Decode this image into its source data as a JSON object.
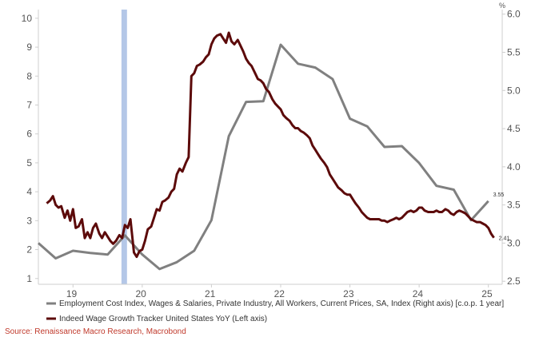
{
  "chart_data": {
    "type": "line",
    "right_axis_unit": "%",
    "left_axis": {
      "ylim": [
        0.8,
        10.3
      ],
      "ticks": [
        "1",
        "2",
        "3",
        "4",
        "5",
        "6",
        "7",
        "8",
        "9",
        "10"
      ]
    },
    "right_axis": {
      "ylim": [
        2.46,
        6.06
      ],
      "ticks": [
        "2.5",
        "3.0",
        "3.5",
        "4.0",
        "4.5",
        "5.0",
        "5.5",
        "6.0"
      ]
    },
    "x_axis": {
      "xlim": [
        2018.5,
        2025.2
      ],
      "ticks": [
        "19",
        "20",
        "21",
        "22",
        "23",
        "24",
        "25"
      ]
    },
    "recession_band": {
      "x_start": 2019.7,
      "x_end": 2019.78,
      "color": "#b4c7e7"
    },
    "series": [
      {
        "name": "Employment Cost Index, Wages & Salaries, Private Industry, All Workers, Current Prices, SA, Index (Right axis) [c.o.p. 1 year]",
        "axis": "right",
        "color": "#808080",
        "end_label": "3.55",
        "points": [
          [
            2018.5,
            3.0
          ],
          [
            2018.75,
            2.8
          ],
          [
            2019.0,
            2.9
          ],
          [
            2019.25,
            2.87
          ],
          [
            2019.5,
            2.85
          ],
          [
            2019.75,
            3.1
          ],
          [
            2020.0,
            2.85
          ],
          [
            2020.25,
            2.66
          ],
          [
            2020.5,
            2.75
          ],
          [
            2020.75,
            2.9
          ],
          [
            2021.0,
            3.3
          ],
          [
            2021.25,
            4.4
          ],
          [
            2021.5,
            4.85
          ],
          [
            2021.75,
            4.86
          ],
          [
            2022.0,
            5.6
          ],
          [
            2022.25,
            5.35
          ],
          [
            2022.5,
            5.3
          ],
          [
            2022.75,
            5.15
          ],
          [
            2023.0,
            4.63
          ],
          [
            2023.25,
            4.53
          ],
          [
            2023.5,
            4.26
          ],
          [
            2023.75,
            4.27
          ],
          [
            2024.0,
            4.05
          ],
          [
            2024.25,
            3.75
          ],
          [
            2024.5,
            3.7
          ],
          [
            2024.75,
            3.3
          ],
          [
            2025.0,
            3.55
          ]
        ]
      },
      {
        "name": "Indeed Wage Growth Tracker United States YoY (Left axis)",
        "axis": "left",
        "color": "#5c0a0a",
        "end_label": "2.41",
        "points": [
          [
            2018.62,
            3.6
          ],
          [
            2018.67,
            3.7
          ],
          [
            2018.71,
            3.85
          ],
          [
            2018.75,
            3.55
          ],
          [
            2018.79,
            3.45
          ],
          [
            2018.83,
            3.5
          ],
          [
            2018.88,
            3.1
          ],
          [
            2018.92,
            3.35
          ],
          [
            2018.96,
            3.0
          ],
          [
            2019.0,
            3.4
          ],
          [
            2019.04,
            2.75
          ],
          [
            2019.08,
            2.8
          ],
          [
            2019.13,
            3.05
          ],
          [
            2019.17,
            2.4
          ],
          [
            2019.21,
            2.6
          ],
          [
            2019.25,
            2.4
          ],
          [
            2019.29,
            2.75
          ],
          [
            2019.33,
            2.9
          ],
          [
            2019.38,
            2.55
          ],
          [
            2019.42,
            2.4
          ],
          [
            2019.46,
            2.6
          ],
          [
            2019.5,
            2.45
          ],
          [
            2019.54,
            2.3
          ],
          [
            2019.58,
            2.2
          ],
          [
            2019.62,
            2.3
          ],
          [
            2019.67,
            2.5
          ],
          [
            2019.71,
            2.4
          ],
          [
            2019.75,
            2.85
          ],
          [
            2019.79,
            2.75
          ],
          [
            2019.83,
            3.05
          ],
          [
            2019.88,
            1.9
          ],
          [
            2019.92,
            1.75
          ],
          [
            2019.96,
            1.95
          ],
          [
            2020.0,
            2.0
          ],
          [
            2020.04,
            2.3
          ],
          [
            2020.08,
            2.7
          ],
          [
            2020.13,
            2.8
          ],
          [
            2020.17,
            3.1
          ],
          [
            2020.21,
            3.4
          ],
          [
            2020.25,
            3.35
          ],
          [
            2020.29,
            3.65
          ],
          [
            2020.33,
            3.7
          ],
          [
            2020.38,
            3.8
          ],
          [
            2020.42,
            4.0
          ],
          [
            2020.46,
            4.1
          ],
          [
            2020.5,
            4.6
          ],
          [
            2020.54,
            4.8
          ],
          [
            2020.58,
            4.7
          ],
          [
            2020.63,
            5.0
          ],
          [
            2020.67,
            5.2
          ],
          [
            2020.71,
            8.0
          ],
          [
            2020.75,
            8.1
          ],
          [
            2020.79,
            8.35
          ],
          [
            2020.83,
            8.4
          ],
          [
            2020.88,
            8.5
          ],
          [
            2020.92,
            8.65
          ],
          [
            2020.96,
            8.75
          ],
          [
            2021.0,
            9.1
          ],
          [
            2021.04,
            9.3
          ],
          [
            2021.08,
            9.4
          ],
          [
            2021.13,
            9.45
          ],
          [
            2021.17,
            9.3
          ],
          [
            2021.21,
            9.15
          ],
          [
            2021.25,
            9.5
          ],
          [
            2021.29,
            9.2
          ],
          [
            2021.33,
            9.1
          ],
          [
            2021.38,
            9.25
          ],
          [
            2021.42,
            9.05
          ],
          [
            2021.46,
            8.85
          ],
          [
            2021.5,
            8.6
          ],
          [
            2021.54,
            8.45
          ],
          [
            2021.58,
            8.35
          ],
          [
            2021.63,
            8.1
          ],
          [
            2021.67,
            7.9
          ],
          [
            2021.71,
            7.85
          ],
          [
            2021.75,
            7.75
          ],
          [
            2021.79,
            7.55
          ],
          [
            2021.83,
            7.45
          ],
          [
            2021.88,
            7.2
          ],
          [
            2021.92,
            7.05
          ],
          [
            2021.96,
            6.95
          ],
          [
            2022.0,
            6.85
          ],
          [
            2022.04,
            6.65
          ],
          [
            2022.08,
            6.55
          ],
          [
            2022.13,
            6.45
          ],
          [
            2022.17,
            6.3
          ],
          [
            2022.21,
            6.2
          ],
          [
            2022.25,
            6.2
          ],
          [
            2022.29,
            6.1
          ],
          [
            2022.33,
            6.05
          ],
          [
            2022.38,
            5.95
          ],
          [
            2022.42,
            5.85
          ],
          [
            2022.46,
            5.6
          ],
          [
            2022.5,
            5.45
          ],
          [
            2022.54,
            5.3
          ],
          [
            2022.58,
            5.15
          ],
          [
            2022.63,
            5.0
          ],
          [
            2022.67,
            4.85
          ],
          [
            2022.71,
            4.6
          ],
          [
            2022.75,
            4.45
          ],
          [
            2022.79,
            4.3
          ],
          [
            2022.83,
            4.15
          ],
          [
            2022.88,
            4.05
          ],
          [
            2022.92,
            3.95
          ],
          [
            2022.96,
            3.9
          ],
          [
            2023.0,
            3.9
          ],
          [
            2023.04,
            3.75
          ],
          [
            2023.08,
            3.6
          ],
          [
            2023.13,
            3.45
          ],
          [
            2023.17,
            3.3
          ],
          [
            2023.21,
            3.2
          ],
          [
            2023.25,
            3.1
          ],
          [
            2023.29,
            3.05
          ],
          [
            2023.33,
            3.05
          ],
          [
            2023.38,
            3.05
          ],
          [
            2023.42,
            3.05
          ],
          [
            2023.46,
            3.0
          ],
          [
            2023.5,
            3.0
          ],
          [
            2023.54,
            2.95
          ],
          [
            2023.58,
            3.0
          ],
          [
            2023.63,
            3.05
          ],
          [
            2023.67,
            3.1
          ],
          [
            2023.71,
            3.05
          ],
          [
            2023.75,
            3.1
          ],
          [
            2023.79,
            3.2
          ],
          [
            2023.83,
            3.3
          ],
          [
            2023.88,
            3.35
          ],
          [
            2023.92,
            3.3
          ],
          [
            2023.96,
            3.35
          ],
          [
            2024.0,
            3.45
          ],
          [
            2024.04,
            3.45
          ],
          [
            2024.08,
            3.35
          ],
          [
            2024.13,
            3.3
          ],
          [
            2024.17,
            3.3
          ],
          [
            2024.21,
            3.3
          ],
          [
            2024.25,
            3.35
          ],
          [
            2024.29,
            3.3
          ],
          [
            2024.33,
            3.3
          ],
          [
            2024.38,
            3.4
          ],
          [
            2024.42,
            3.35
          ],
          [
            2024.46,
            3.25
          ],
          [
            2024.5,
            3.2
          ],
          [
            2024.54,
            3.3
          ],
          [
            2024.58,
            3.35
          ],
          [
            2024.63,
            3.3
          ],
          [
            2024.67,
            3.25
          ],
          [
            2024.71,
            3.15
          ],
          [
            2024.75,
            3.05
          ],
          [
            2024.79,
            3.0
          ],
          [
            2024.83,
            2.95
          ],
          [
            2024.88,
            2.95
          ],
          [
            2024.92,
            2.9
          ],
          [
            2024.96,
            2.85
          ],
          [
            2025.0,
            2.75
          ],
          [
            2025.04,
            2.55
          ],
          [
            2025.08,
            2.41
          ]
        ]
      }
    ],
    "legend_placement": "bottom",
    "source": "Source: Renaissance Macro Research, Macrobond"
  }
}
